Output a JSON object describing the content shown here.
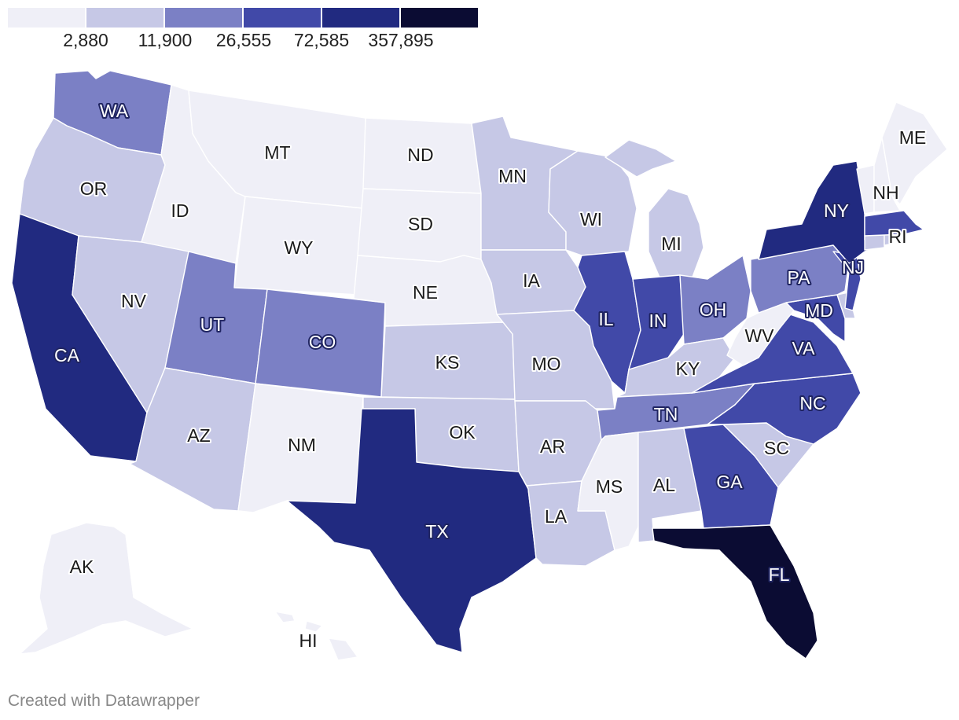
{
  "legend": {
    "colors": [
      "#efeff7",
      "#c6c8e6",
      "#7b80c5",
      "#4149a8",
      "#212a80",
      "#0b0c33"
    ],
    "labels": [
      "2,880",
      "11,900",
      "26,555",
      "72,585",
      "357,895"
    ]
  },
  "map": {
    "states": [
      {
        "code": "WA",
        "bin": 2
      },
      {
        "code": "OR",
        "bin": 1
      },
      {
        "code": "CA",
        "bin": 4
      },
      {
        "code": "ID",
        "bin": 0
      },
      {
        "code": "NV",
        "bin": 1
      },
      {
        "code": "MT",
        "bin": 0
      },
      {
        "code": "WY",
        "bin": 0
      },
      {
        "code": "UT",
        "bin": 2
      },
      {
        "code": "CO",
        "bin": 2
      },
      {
        "code": "AZ",
        "bin": 1
      },
      {
        "code": "NM",
        "bin": 0
      },
      {
        "code": "ND",
        "bin": 0
      },
      {
        "code": "SD",
        "bin": 0
      },
      {
        "code": "NE",
        "bin": 0
      },
      {
        "code": "KS",
        "bin": 1
      },
      {
        "code": "OK",
        "bin": 1
      },
      {
        "code": "TX",
        "bin": 4
      },
      {
        "code": "MN",
        "bin": 1
      },
      {
        "code": "IA",
        "bin": 1
      },
      {
        "code": "MO",
        "bin": 1
      },
      {
        "code": "AR",
        "bin": 1
      },
      {
        "code": "LA",
        "bin": 1
      },
      {
        "code": "WI",
        "bin": 1
      },
      {
        "code": "IL",
        "bin": 3
      },
      {
        "code": "MI",
        "bin": 1
      },
      {
        "code": "IN",
        "bin": 3
      },
      {
        "code": "OH",
        "bin": 2
      },
      {
        "code": "KY",
        "bin": 1
      },
      {
        "code": "TN",
        "bin": 2
      },
      {
        "code": "MS",
        "bin": 0
      },
      {
        "code": "AL",
        "bin": 1
      },
      {
        "code": "GA",
        "bin": 3
      },
      {
        "code": "FL",
        "bin": 5
      },
      {
        "code": "SC",
        "bin": 1
      },
      {
        "code": "NC",
        "bin": 3
      },
      {
        "code": "VA",
        "bin": 3
      },
      {
        "code": "WV",
        "bin": 0
      },
      {
        "code": "MD",
        "bin": 3
      },
      {
        "code": "DE",
        "bin": 1
      },
      {
        "code": "PA",
        "bin": 2
      },
      {
        "code": "NJ",
        "bin": 3
      },
      {
        "code": "NY",
        "bin": 4
      },
      {
        "code": "CT",
        "bin": 1
      },
      {
        "code": "RI",
        "bin": 1
      },
      {
        "code": "MA",
        "bin": 3
      },
      {
        "code": "VT",
        "bin": 0
      },
      {
        "code": "NH",
        "bin": 0
      },
      {
        "code": "ME",
        "bin": 0
      },
      {
        "code": "AK",
        "bin": 0
      },
      {
        "code": "HI",
        "bin": 0
      }
    ]
  },
  "labels": [
    "WA",
    "OR",
    "CA",
    "ID",
    "NV",
    "MT",
    "WY",
    "UT",
    "CO",
    "AZ",
    "NM",
    "ND",
    "SD",
    "NE",
    "KS",
    "OK",
    "TX",
    "MN",
    "IA",
    "MO",
    "AR",
    "LA",
    "WI",
    "IL",
    "MI",
    "IN",
    "OH",
    "KY",
    "TN",
    "MS",
    "AL",
    "GA",
    "FL",
    "SC",
    "NC",
    "VA",
    "WV",
    "MD",
    "PA",
    "NJ",
    "NY",
    "RI",
    "NH",
    "ME",
    "AK",
    "HI"
  ],
  "credit": "Created with Datawrapper"
}
